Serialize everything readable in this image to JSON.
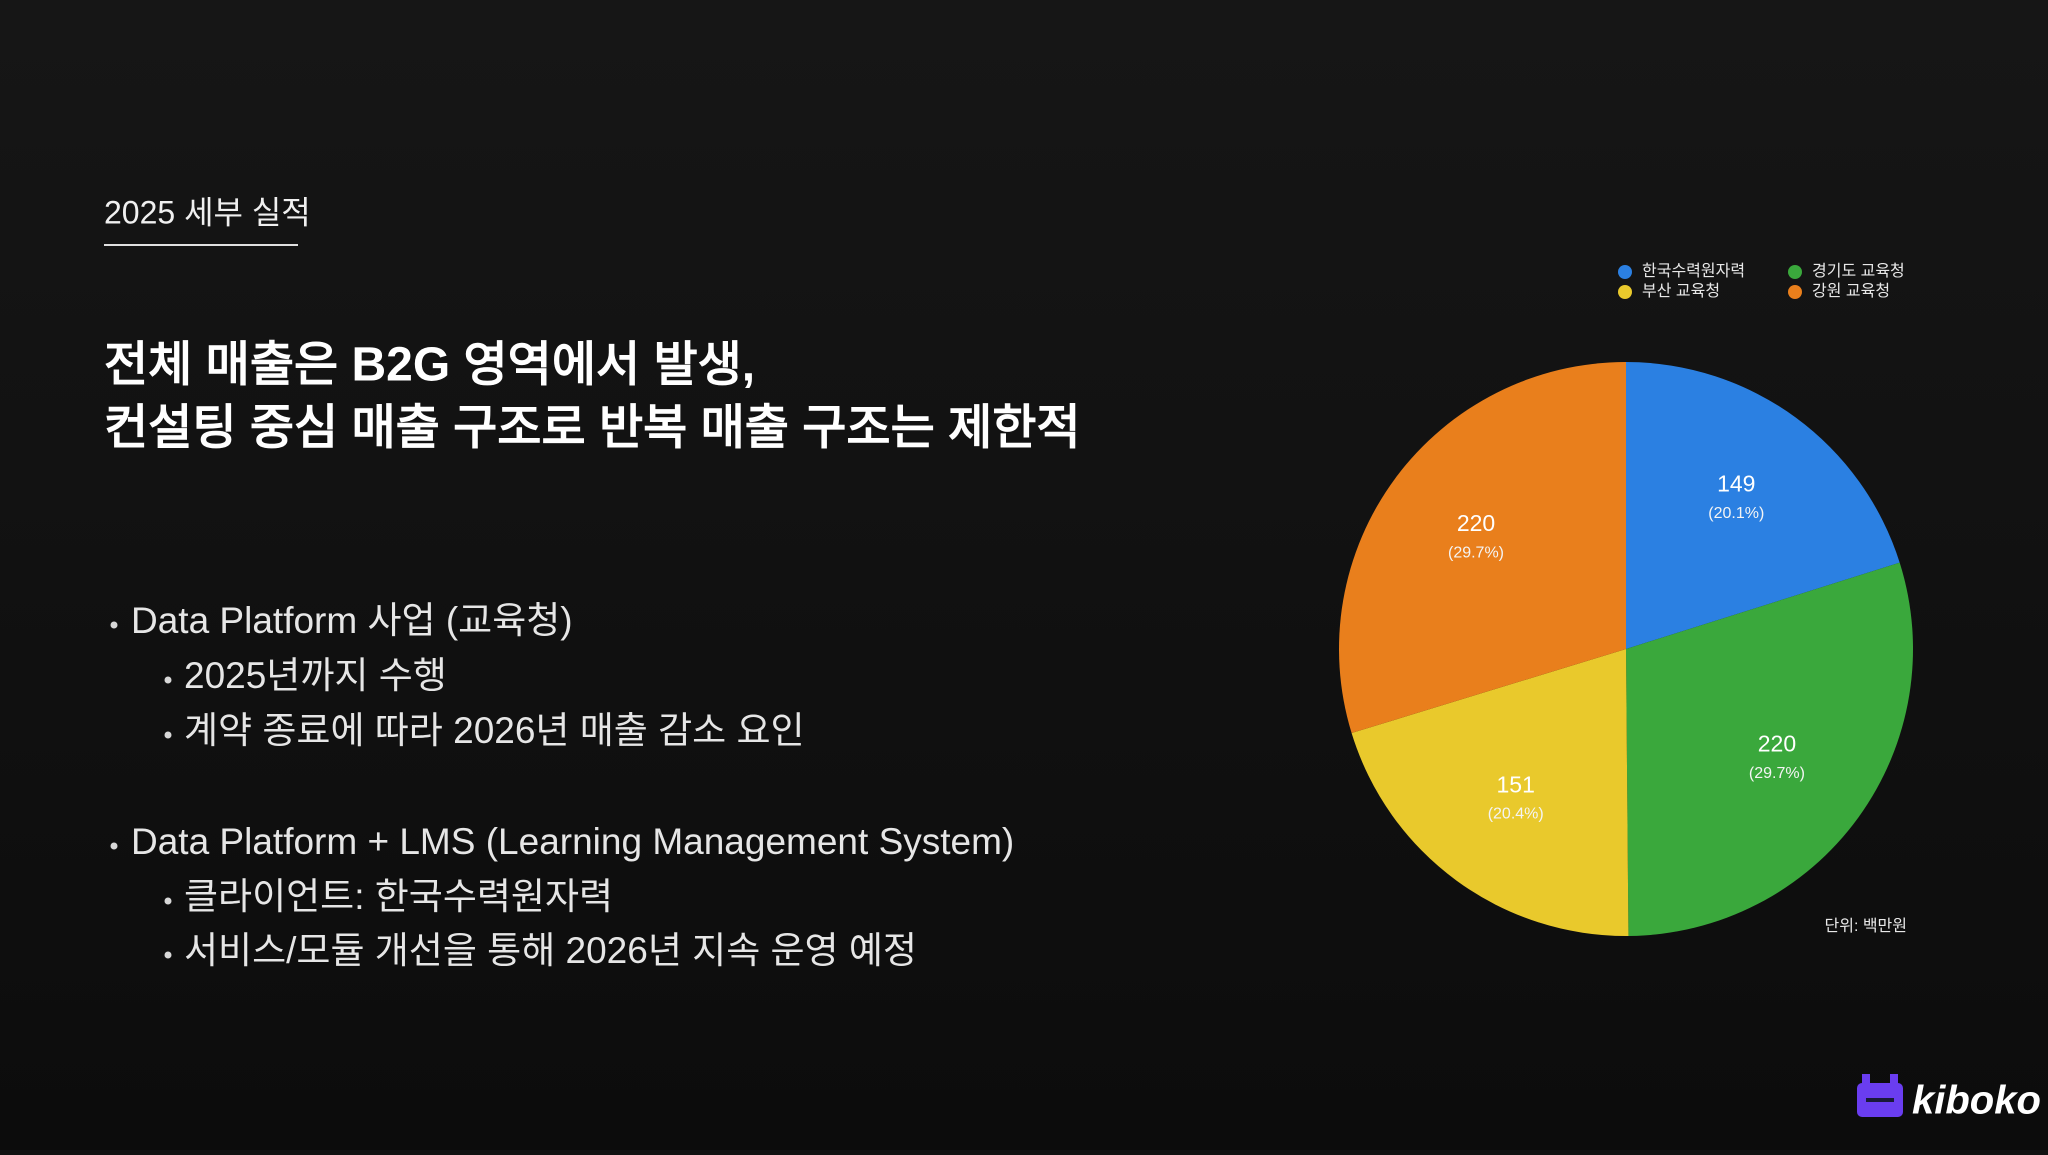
{
  "section_label": "2025 세부 실적",
  "headline": [
    "전체 매출은 B2G 영역에서 발생,",
    "컨설팅 중심 매출 구조로 반복 매출 구조는 제한적"
  ],
  "bullets": [
    {
      "text": "Data Platform 사업 (교육청)",
      "children": [
        "2025년까지 수행",
        "계약 종료에 따라 2026년 매출 감소 요인"
      ]
    },
    {
      "text": "Data Platform + LMS (Learning Management System)",
      "children": [
        "클라이언트: 한국수력원자력",
        "서비스/모듈 개선을 통해 2026년 지속 운영 예정"
      ]
    }
  ],
  "logo": "kiboko",
  "chart_data": {
    "type": "pie",
    "categories": [
      "한국수력원자력",
      "경기도 교육청",
      "부산 교육청",
      "강원 교육청"
    ],
    "values": [
      149,
      220,
      151,
      220
    ],
    "percent_labels": [
      "(20.1%)",
      "(29.7%)",
      "(20.4%)",
      "(29.7%)"
    ],
    "colors": [
      "#2b80e2",
      "#3aa83c",
      "#e9c92c",
      "#e97f1c"
    ],
    "unit_note": "단위: 백만원",
    "legend": "top-right"
  }
}
